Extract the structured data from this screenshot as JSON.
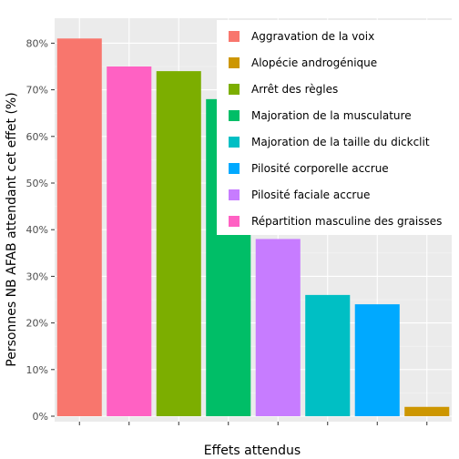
{
  "chart_data": {
    "type": "bar",
    "title": "",
    "xlabel": "Effets attendus",
    "ylabel": "Personnes NB AFAB attendant cet effet (%)",
    "ylim": [
      0,
      0.83
    ],
    "y_ticks": [
      0,
      0.1,
      0.2,
      0.3,
      0.4,
      0.5,
      0.6,
      0.7,
      0.8
    ],
    "y_tick_labels": [
      "0%",
      "10%",
      "20%",
      "30%",
      "40%",
      "50%",
      "60%",
      "70%",
      "80%"
    ],
    "grid": true,
    "legend_position": "top-right",
    "categories": [
      "Aggravation de la voix",
      "Répartition masculine des graisses",
      "Arrêt des règles",
      "Majoration de la musculature",
      "Pilosité faciale accrue",
      "Majoration de la taille du dickclit",
      "Pilosité corporelle accrue",
      "Alopécie androgénique"
    ],
    "values": [
      0.81,
      0.75,
      0.74,
      0.68,
      0.38,
      0.26,
      0.24,
      0.02
    ],
    "colors": [
      "#F8766D",
      "#FF61C3",
      "#7CAE00",
      "#00BE67",
      "#C77CFF",
      "#00BFC4",
      "#00A9FF",
      "#CD9600"
    ],
    "legend": [
      {
        "label": "Aggravation de la voix",
        "color": "#F8766D"
      },
      {
        "label": "Alopécie androgénique",
        "color": "#CD9600"
      },
      {
        "label": "Arrêt des règles",
        "color": "#7CAE00"
      },
      {
        "label": "Majoration de la musculature",
        "color": "#00BE67"
      },
      {
        "label": "Majoration de la taille du dickclit",
        "color": "#00BFC4"
      },
      {
        "label": "Pilosité corporelle accrue",
        "color": "#00A9FF"
      },
      {
        "label": "Pilosité faciale accrue",
        "color": "#C77CFF"
      },
      {
        "label": "Répartition masculine des graisses",
        "color": "#FF61C3"
      }
    ]
  }
}
